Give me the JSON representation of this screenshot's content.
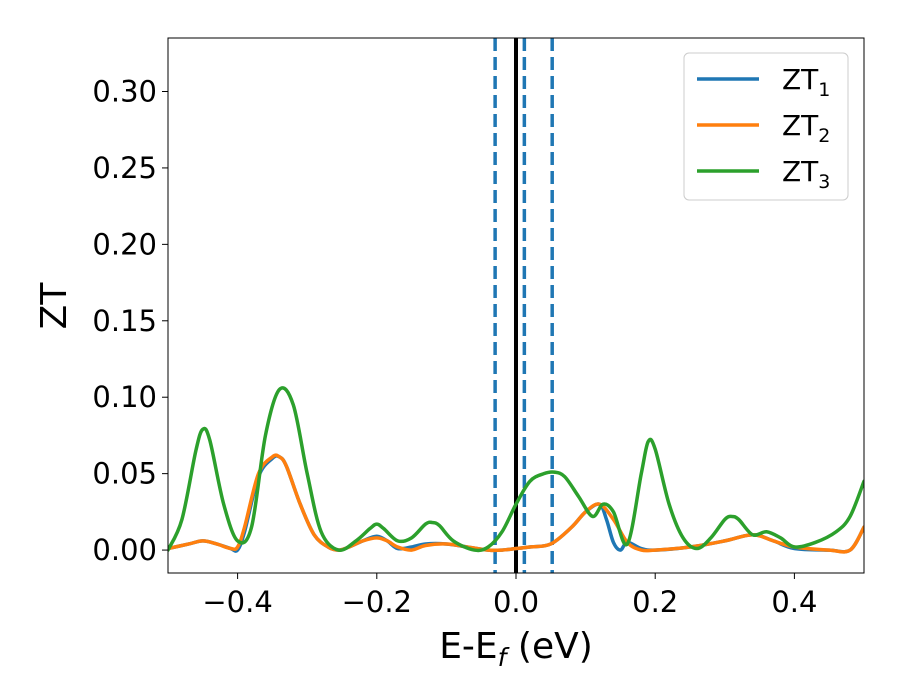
{
  "chart_data": {
    "type": "line",
    "xlabel": "E-Ef (eV)",
    "xlabel_main": "E-E",
    "xlabel_sub": "f",
    "xlabel_tail": " (eV)",
    "ylabel": "ZT",
    "xlim": [
      -0.5,
      0.5
    ],
    "ylim": [
      -0.015,
      0.335
    ],
    "xticks": [
      -0.4,
      -0.2,
      0.0,
      0.2,
      0.4
    ],
    "xtick_labels": [
      "−0.4",
      "−0.2",
      "0.0",
      "0.2",
      "0.4"
    ],
    "yticks": [
      0.0,
      0.05,
      0.1,
      0.15,
      0.2,
      0.25,
      0.3
    ],
    "ytick_labels": [
      "0.00",
      "0.05",
      "0.10",
      "0.15",
      "0.20",
      "0.25",
      "0.30"
    ],
    "grid": false,
    "legend_position": "top-right",
    "vlines": [
      {
        "x": 0.0,
        "style": "solid",
        "color": "#000000"
      },
      {
        "x": -0.03,
        "style": "dashed",
        "color": "#1f77b4"
      },
      {
        "x": 0.012,
        "style": "dashed",
        "color": "#1f77b4"
      },
      {
        "x": 0.052,
        "style": "dashed",
        "color": "#1f77b4"
      }
    ],
    "series": [
      {
        "name": "ZT1",
        "label_main": "ZT",
        "label_sub": "1",
        "color": "#1f77b4",
        "x": [
          -0.5,
          -0.47,
          -0.45,
          -0.43,
          -0.41,
          -0.4,
          -0.39,
          -0.37,
          -0.35,
          -0.34,
          -0.33,
          -0.31,
          -0.29,
          -0.27,
          -0.255,
          -0.24,
          -0.22,
          -0.2,
          -0.185,
          -0.17,
          -0.15,
          -0.13,
          -0.1,
          -0.07,
          -0.04,
          -0.02,
          0.0,
          0.02,
          0.05,
          0.08,
          0.1,
          0.12,
          0.13,
          0.14,
          0.15,
          0.16,
          0.18,
          0.2,
          0.25,
          0.3,
          0.34,
          0.37,
          0.4,
          0.45,
          0.48,
          0.5
        ],
        "y": [
          0.001,
          0.004,
          0.006,
          0.004,
          0.001,
          0.0,
          0.012,
          0.048,
          0.06,
          0.061,
          0.055,
          0.03,
          0.01,
          0.002,
          0.0,
          0.002,
          0.006,
          0.009,
          0.006,
          0.001,
          0.002,
          0.004,
          0.004,
          0.002,
          0.0,
          0.0,
          0.001,
          0.002,
          0.004,
          0.015,
          0.025,
          0.03,
          0.02,
          0.005,
          0.0,
          0.005,
          0.001,
          0.0,
          0.002,
          0.006,
          0.01,
          0.006,
          0.001,
          0.0,
          0.0,
          0.015
        ]
      },
      {
        "name": "ZT2",
        "label_main": "ZT",
        "label_sub": "2",
        "color": "#ff7f0e",
        "x": [
          -0.5,
          -0.47,
          -0.45,
          -0.43,
          -0.41,
          -0.4,
          -0.39,
          -0.37,
          -0.35,
          -0.34,
          -0.33,
          -0.31,
          -0.29,
          -0.27,
          -0.255,
          -0.24,
          -0.22,
          -0.2,
          -0.185,
          -0.17,
          -0.15,
          -0.13,
          -0.1,
          -0.07,
          -0.04,
          -0.02,
          0.0,
          0.02,
          0.05,
          0.08,
          0.1,
          0.12,
          0.14,
          0.16,
          0.18,
          0.2,
          0.25,
          0.3,
          0.34,
          0.37,
          0.4,
          0.45,
          0.48,
          0.5
        ],
        "y": [
          0.001,
          0.004,
          0.006,
          0.004,
          0.001,
          0.002,
          0.015,
          0.05,
          0.061,
          0.061,
          0.055,
          0.03,
          0.01,
          0.002,
          0.0,
          0.002,
          0.006,
          0.008,
          0.006,
          0.002,
          0.0,
          0.003,
          0.004,
          0.002,
          0.0,
          0.0,
          0.001,
          0.002,
          0.004,
          0.015,
          0.025,
          0.03,
          0.02,
          0.005,
          0.0,
          0.0,
          0.002,
          0.006,
          0.01,
          0.006,
          0.002,
          0.0,
          0.0,
          0.015
        ]
      },
      {
        "name": "ZT3",
        "label_main": "ZT",
        "label_sub": "3",
        "color": "#2ca02c",
        "x": [
          -0.5,
          -0.48,
          -0.46,
          -0.45,
          -0.44,
          -0.42,
          -0.4,
          -0.38,
          -0.36,
          -0.34,
          -0.32,
          -0.3,
          -0.28,
          -0.255,
          -0.23,
          -0.21,
          -0.2,
          -0.19,
          -0.17,
          -0.15,
          -0.13,
          -0.12,
          -0.11,
          -0.09,
          -0.06,
          -0.04,
          -0.02,
          0.0,
          0.02,
          0.04,
          0.055,
          0.07,
          0.09,
          0.11,
          0.125,
          0.14,
          0.16,
          0.18,
          0.19,
          0.2,
          0.22,
          0.24,
          0.26,
          0.28,
          0.3,
          0.31,
          0.32,
          0.34,
          0.36,
          0.38,
          0.4,
          0.43,
          0.46,
          0.48,
          0.5
        ],
        "y": [
          0.0,
          0.02,
          0.065,
          0.079,
          0.072,
          0.03,
          0.006,
          0.015,
          0.075,
          0.105,
          0.095,
          0.05,
          0.012,
          0.0,
          0.006,
          0.014,
          0.017,
          0.014,
          0.006,
          0.008,
          0.017,
          0.018,
          0.016,
          0.006,
          0.0,
          0.002,
          0.012,
          0.03,
          0.045,
          0.05,
          0.051,
          0.048,
          0.035,
          0.022,
          0.03,
          0.025,
          0.004,
          0.05,
          0.071,
          0.066,
          0.03,
          0.008,
          0.001,
          0.008,
          0.02,
          0.022,
          0.02,
          0.01,
          0.012,
          0.008,
          0.002,
          0.005,
          0.012,
          0.022,
          0.045
        ]
      }
    ]
  }
}
